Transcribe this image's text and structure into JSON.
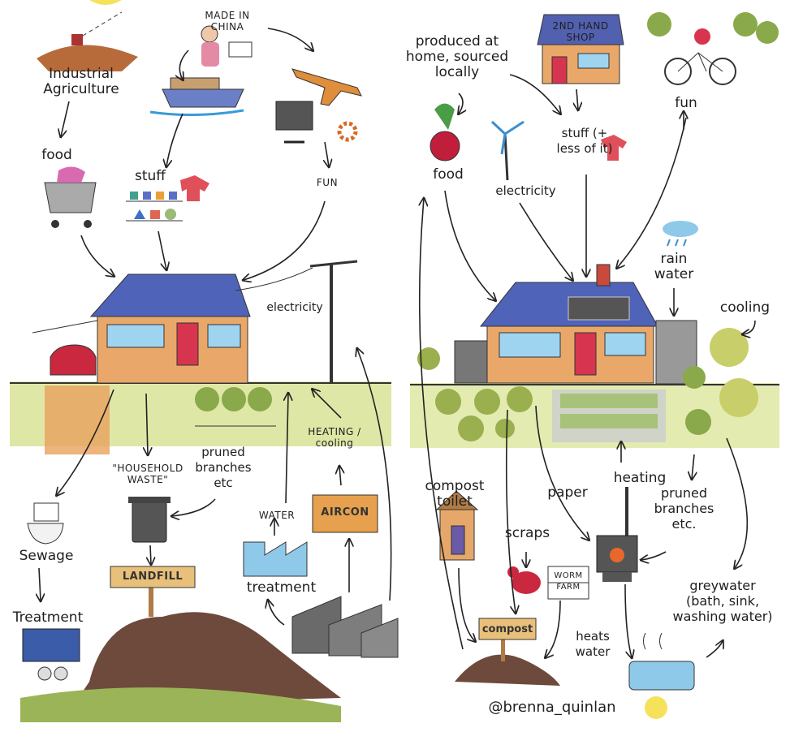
{
  "linear": {
    "industrial_agriculture": "Industrial Agriculture",
    "made_in_china": "MADE IN CHINA",
    "food": "food",
    "stuff": "stuff",
    "fun": "FUN",
    "electricity": "electricity",
    "household_waste": "\"HOUSEHOLD WASTE\"",
    "pruned_branches": "pruned branches etc",
    "heating_cooling": "HEATING / cooling",
    "water": "WATER",
    "aircon": "AIRCON",
    "sewage": "Sewage",
    "landfill": "LANDFILL",
    "treatment_sewage": "Treatment",
    "treatment_water": "treatment"
  },
  "circular": {
    "shop": "2ND HAND SHOP",
    "produced_locally": "produced at home, sourced locally",
    "food": "food",
    "electricity": "electricity",
    "stuff": "stuff (+ less of it)",
    "fun": "fun",
    "rain_water": "rain water",
    "cooling": "cooling",
    "compost_toilet": "compost toilet",
    "scraps": "scraps",
    "paper": "paper",
    "heating": "heating",
    "pruned_branches": "pruned branches etc.",
    "worm_farm": "WORM FARM",
    "compost": "compost",
    "heats_water": "heats water",
    "greywater": "greywater (bath, sink, washing water)"
  },
  "credit": "@brenna_quinlan"
}
